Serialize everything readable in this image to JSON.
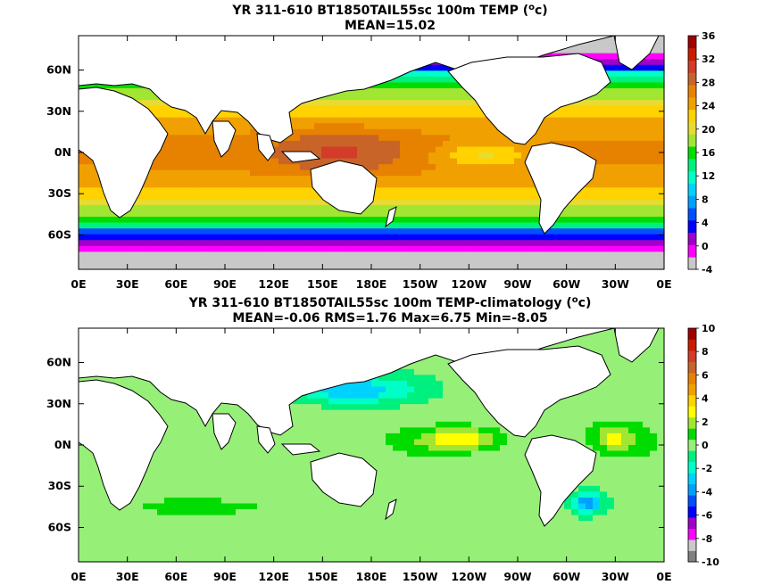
{
  "panels": [
    {
      "title_prefix": "YR 311-610 BT1850TAIL55sc 100m TEMP (",
      "title_unit_sup": "o",
      "title_unit_suffix": "c)",
      "stats": "MEAN=15.02",
      "lat_labels": [
        "60N",
        "30N",
        "0N",
        "30S",
        "60S"
      ],
      "lon_labels": [
        "0E",
        "30E",
        "60E",
        "90E",
        "120E",
        "150E",
        "180E",
        "150W",
        "120W",
        "90W",
        "60W",
        "30W",
        "0E"
      ],
      "colorbar_labels": [
        "36",
        "32",
        "28",
        "24",
        "20",
        "16",
        "12",
        "8",
        "4",
        "0",
        "-4"
      ],
      "colorbar_colors": [
        "#c8c8c8",
        "#ff00ff",
        "#a000c8",
        "#0000ff",
        "#0050ff",
        "#00a0ff",
        "#00d2ff",
        "#00ffc8",
        "#00f080",
        "#00dc00",
        "#a0e632",
        "#e6dc32",
        "#ffd200",
        "#f0a000",
        "#e68200",
        "#c86428",
        "#d23c28",
        "#c81e00",
        "#a00000"
      ],
      "field": "temperature"
    },
    {
      "title_prefix": "YR 311-610 BT1850TAIL55sc 100m TEMP-climatology (",
      "title_unit_sup": "o",
      "title_unit_suffix": "c)",
      "stats": "MEAN=-0.06   RMS=1.76   Max=6.75   Min=-8.05",
      "lat_labels": [
        "60N",
        "30N",
        "0N",
        "30S",
        "60S"
      ],
      "lon_labels": [
        "0E",
        "30E",
        "60E",
        "90E",
        "120E",
        "150E",
        "180E",
        "150W",
        "120W",
        "90W",
        "60W",
        "30W",
        "0E"
      ],
      "colorbar_labels": [
        "10",
        "8",
        "6",
        "4",
        "2",
        "0",
        "-2",
        "-4",
        "-6",
        "-8",
        "-10"
      ],
      "colorbar_colors": [
        "#808080",
        "#c8c8c8",
        "#ff00ff",
        "#a000c8",
        "#0000ff",
        "#0050ff",
        "#00a0ff",
        "#00d2ff",
        "#00ffc8",
        "#00f080",
        "#96f078",
        "#00dc00",
        "#a0e632",
        "#ffff00",
        "#ffd200",
        "#f0a000",
        "#e68200",
        "#c86428",
        "#d23c28",
        "#c81e00",
        "#a00000"
      ],
      "field": "anomaly"
    }
  ],
  "colors": {
    "land": "#ffffff",
    "coast": "#000000",
    "frame": "#000000"
  }
}
